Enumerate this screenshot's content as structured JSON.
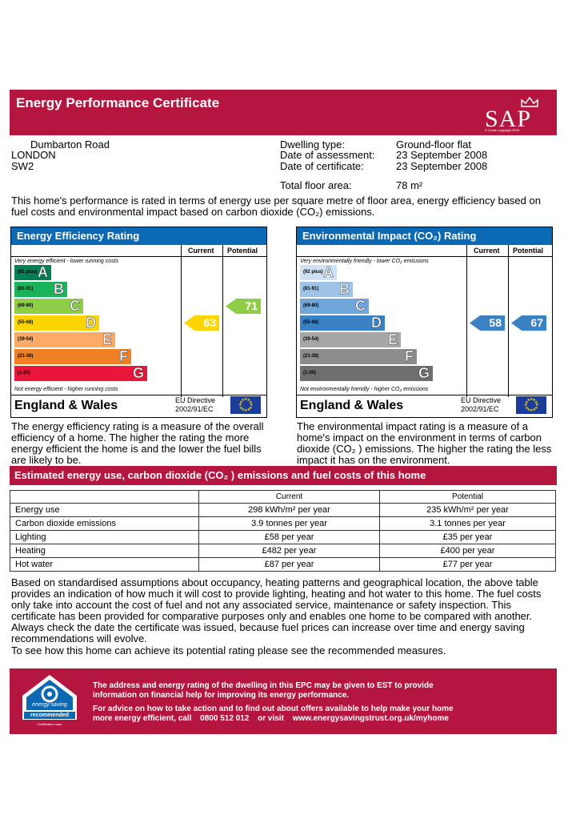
{
  "header": {
    "title": "Energy Performance Certificate",
    "logo_text": "SAP",
    "logo_caption": "© Crown copyright 2009"
  },
  "address": {
    "line1": "Dumbarton Road",
    "line2": "LONDON",
    "line3": "SW2"
  },
  "details": {
    "dwelling_type_label": "Dwelling type:",
    "dwelling_type": "Ground-floor flat",
    "assessment_label": "Date of assessment:",
    "assessment_date": "23 September 2008",
    "certificate_label": "Date of certificate:",
    "certificate_date": "23 September 2008",
    "floor_label": "Total floor area:",
    "floor_area": "78 m²"
  },
  "intro": "This home's performance is rated in terms of energy use per square metre of floor area, energy efficiency based on fuel costs and environmental impact based on carbon dioxide (CO₂) emissions.",
  "efficiency": {
    "title": "Energy Efficiency Rating",
    "current_label": "Current",
    "potential_label": "Potential",
    "top_caption": "Very energy efficient - lower running costs",
    "bottom_caption": "Not energy efficient - higher running costs",
    "bands": [
      {
        "range": "(92 plus)",
        "letter": "A",
        "color": "#008054"
      },
      {
        "range": "(81-91)",
        "letter": "B",
        "color": "#19b459"
      },
      {
        "range": "(69-80)",
        "letter": "C",
        "color": "#8dce46"
      },
      {
        "range": "(55-68)",
        "letter": "D",
        "color": "#ffd500"
      },
      {
        "range": "(39-54)",
        "letter": "E",
        "color": "#fcaa65"
      },
      {
        "range": "(21-38)",
        "letter": "F",
        "color": "#ef8023"
      },
      {
        "range": "(1-20)",
        "letter": "G",
        "color": "#e9153b"
      }
    ],
    "current": "63",
    "potential": "71",
    "current_color": "#ffd500",
    "potential_color": "#8dce46",
    "region": "England & Wales",
    "directive": "EU Directive",
    "directive_no": "2002/91/EC",
    "description": "The energy efficiency rating is a measure of the overall efficiency of a home. The higher the rating the more energy efficient the home is and the lower the fuel bills are likely to be."
  },
  "environment": {
    "title": "Environmental Impact (CO₂) Rating",
    "current_label": "Current",
    "potential_label": "Potential",
    "top_caption": "Very environmentally friendly - lower CO₂ emissions",
    "bottom_caption": "Not environmentally friendly - higher CO₂ emissions",
    "bands": [
      {
        "range": "(92 plus)",
        "letter": "A",
        "color": "#cfe2f3"
      },
      {
        "range": "(81-91)",
        "letter": "B",
        "color": "#9fc3e7"
      },
      {
        "range": "(69-80)",
        "letter": "C",
        "color": "#6fa7dc"
      },
      {
        "range": "(55-68)",
        "letter": "D",
        "color": "#3b82c4"
      },
      {
        "range": "(39-54)",
        "letter": "E",
        "color": "#a6a6a6"
      },
      {
        "range": "(21-38)",
        "letter": "F",
        "color": "#8c8c8c"
      },
      {
        "range": "(1-20)",
        "letter": "G",
        "color": "#6e6e6e"
      }
    ],
    "current": "58",
    "potential": "67",
    "current_color": "#3b82c4",
    "potential_color": "#3b82c4",
    "region": "England & Wales",
    "directive": "EU Directive",
    "directive_no": "2002/91/EC",
    "description": "The environmental impact rating is a measure of a home's impact on the environment in terms of carbon dioxide (CO₂ ) emissions. The higher the rating the less impact it has on the environment."
  },
  "estimated": {
    "title": "Estimated energy use, carbon dioxide (CO₂ ) emissions and fuel costs of this home",
    "col_current": "Current",
    "col_potential": "Potential",
    "rows": [
      {
        "label": "Energy use",
        "current": "298 kWh/m² per year",
        "potential": "235 kWh/m² per year"
      },
      {
        "label": "Carbon dioxide emissions",
        "current": "3.9 tonnes per year",
        "potential": "3.1 tonnes per year"
      },
      {
        "label": "Lighting",
        "current": "£58 per year",
        "potential": "£35 per year"
      },
      {
        "label": "Heating",
        "current": "£482 per year",
        "potential": "£400 per year"
      },
      {
        "label": "Hot water",
        "current": "£87 per year",
        "potential": "£77 per year"
      }
    ]
  },
  "notes": {
    "p1": "Based on standardised assumptions about occupancy, heating patterns and geographical location, the above table provides an indication of how much it will cost to provide lighting, heating and hot water to this home. The fuel costs only take into account the cost of fuel and not any associated service, maintenance or safety inspection. This certificate has been provided for comparative purposes only and enables one home to be compared with another. Always check the date the certificate was issued, because fuel prices can increase over time and energy saving recommendations will evolve.",
    "p2": "To see how this home can achieve its potential rating please see the recommended measures."
  },
  "footer": {
    "badge_top": "energy saving",
    "badge_bottom": "recommended",
    "badge_mark": "Certification mark",
    "line1": "The address and energy rating of the dwelling in this EPC may be given to EST to provide",
    "line2": "information on financial help for improving its energy performance.",
    "line3": "For advice on how to take action and to find out about offers available to help make your home",
    "line4_a": "more energy efficient, call",
    "phone": "0800 512 012",
    "line4_b": "or visit",
    "url": "www.energysavingstrust.org.uk/myhome"
  }
}
